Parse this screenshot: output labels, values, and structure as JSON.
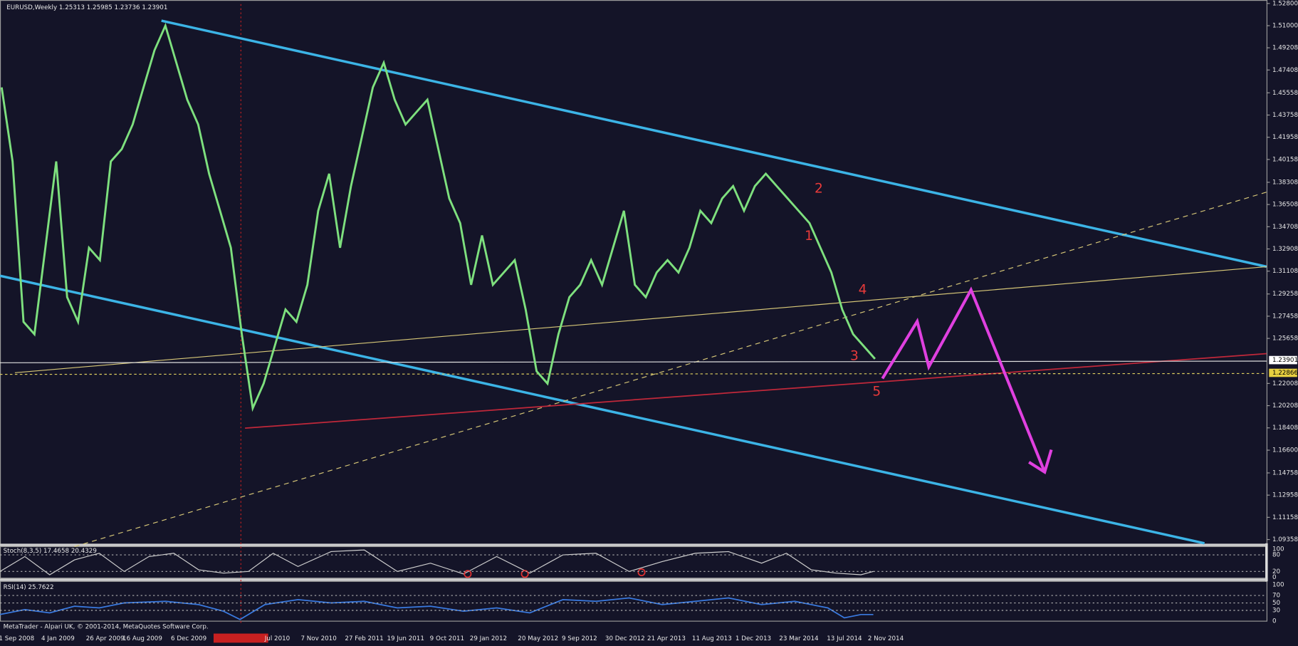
{
  "header": {
    "title": "EURUSD,Weekly 1.25313 1.25985 1.23736 1.23901"
  },
  "price_axis": {
    "labels": [
      "1.52800",
      "1.51000",
      "1.49208",
      "1.47408",
      "1.45558",
      "1.43758",
      "1.41958",
      "1.40158",
      "1.38308",
      "1.36508",
      "1.34708",
      "1.32908",
      "1.31108",
      "1.29258",
      "1.27458",
      "1.25658",
      "1.22008",
      "1.20208",
      "1.18408",
      "1.16600",
      "1.14758",
      "1.12958",
      "1.11158",
      "1.09358"
    ],
    "current": "1.23901",
    "marker": "1.22866"
  },
  "time_axis": {
    "labels": [
      "1 Sep 2008",
      "4 Jan 2009",
      "26 Apr 2009",
      "16 Aug 2009",
      "6 Dec 2009",
      "Jul 2010",
      "7 Nov 2010",
      "27 Feb 2011",
      "19 Jun 2011",
      "9 Oct 2011",
      "29 Jan 2012",
      "20 May 2012",
      "9 Sep 2012",
      "30 Dec 2012",
      "21 Apr 2013",
      "11 Aug 2013",
      "1 Dec 2013",
      "23 Mar 2014",
      "13 Jul 2014",
      "2 Nov 2014"
    ]
  },
  "wave_labels": [
    "1",
    "2",
    "3",
    "4",
    "5"
  ],
  "stochastic": {
    "title": "Stoch(8,3,5) 17.4658 20.4329",
    "levels": [
      "100",
      "80",
      "20",
      "0"
    ]
  },
  "rsi": {
    "title": "RSI(14) 25.7622",
    "levels": [
      "100",
      "70",
      "50",
      "30",
      "0"
    ]
  },
  "footer": "MetaTrader - Alpari UK, © 2001-2014, MetaQuotes Software Corp.",
  "price": {
    "closes": [
      1.46,
      1.4,
      1.27,
      1.26,
      1.33,
      1.4,
      1.29,
      1.27,
      1.33,
      1.32,
      1.4,
      1.41,
      1.43,
      1.46,
      1.49,
      1.51,
      1.48,
      1.45,
      1.43,
      1.39,
      1.36,
      1.33,
      1.26,
      1.2,
      1.22,
      1.25,
      1.28,
      1.27,
      1.3,
      1.36,
      1.39,
      1.33,
      1.38,
      1.42,
      1.46,
      1.48,
      1.45,
      1.43,
      1.44,
      1.45,
      1.41,
      1.37,
      1.35,
      1.3,
      1.34,
      1.3,
      1.31,
      1.32,
      1.28,
      1.23,
      1.22,
      1.26,
      1.29,
      1.3,
      1.32,
      1.3,
      1.33,
      1.36,
      1.3,
      1.29,
      1.31,
      1.32,
      1.31,
      1.33,
      1.36,
      1.35,
      1.37,
      1.38,
      1.36,
      1.38,
      1.39,
      1.38,
      1.37,
      1.36,
      1.35,
      1.33,
      1.31,
      1.28,
      1.26,
      1.25,
      1.24
    ]
  }
}
